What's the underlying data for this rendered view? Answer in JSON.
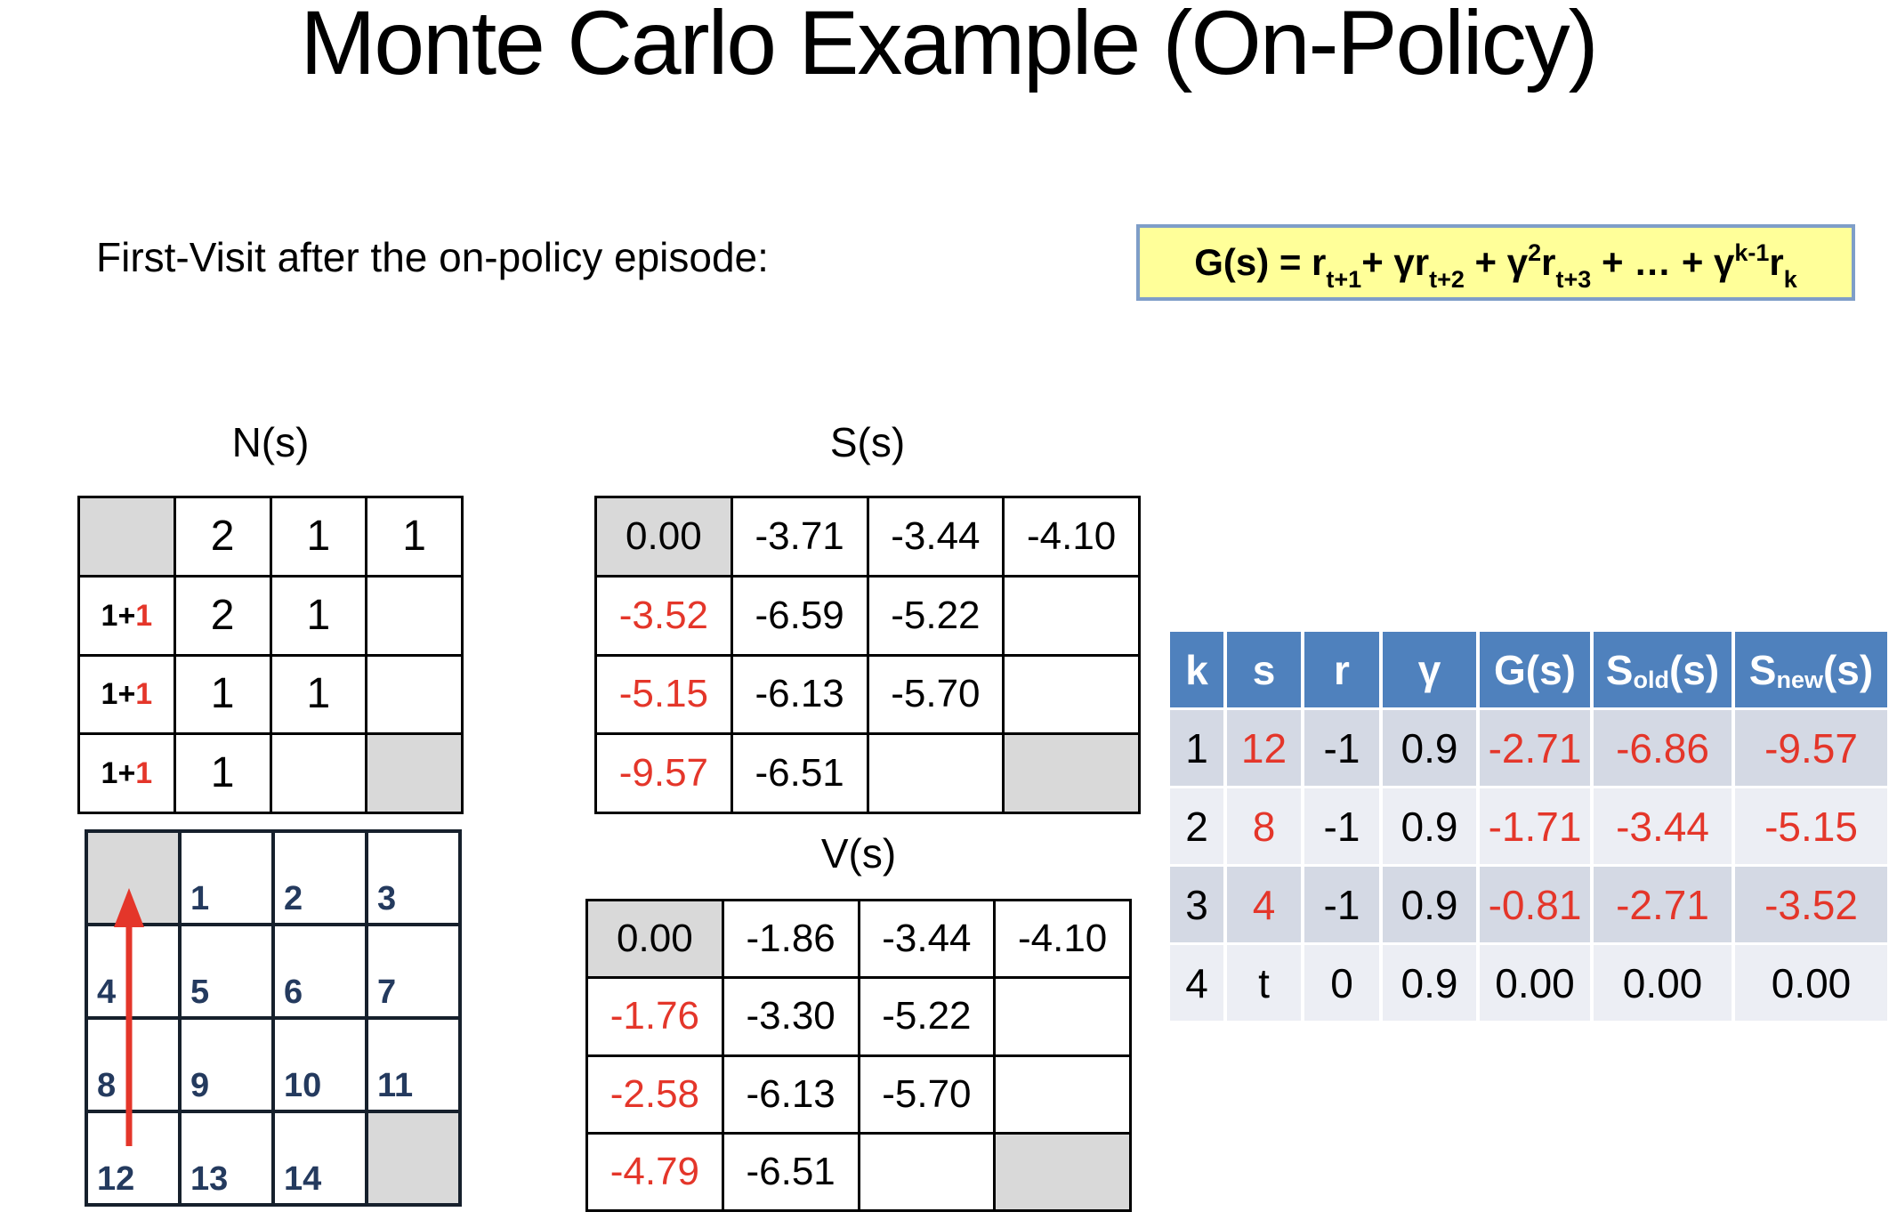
{
  "title": "Monte Carlo Example (On-Policy)",
  "subtitle": "First-Visit after the on-policy episode:",
  "formula": {
    "text_flat": "G(s) = r_{t+1}+ γr_{t+2} + γ^2 r_{t+3} + … + γ^{k-1} r_k",
    "parts": [
      [
        "G(s) = r",
        "t"
      ],
      [
        "t+1",
        "sub"
      ],
      [
        "+ γr",
        "t"
      ],
      [
        "t+2",
        "sub"
      ],
      [
        " + γ",
        "t"
      ],
      [
        "2",
        "sup"
      ],
      [
        "r",
        "t"
      ],
      [
        "t+3",
        "sub"
      ],
      [
        " + … + γ",
        "t"
      ],
      [
        "k-1",
        "sup"
      ],
      [
        "r",
        "t"
      ],
      [
        "k",
        "sub"
      ]
    ]
  },
  "labels": {
    "n": "N(s)",
    "s": "S(s)",
    "v": "V(s)"
  },
  "n_table": {
    "rows": [
      [
        {
          "bg": "g"
        },
        {
          "p": [
            [
              "2",
              "k"
            ]
          ]
        },
        {
          "p": [
            [
              "1",
              "k"
            ]
          ]
        },
        {
          "p": [
            [
              "1",
              "k"
            ]
          ]
        }
      ],
      [
        {
          "p": [
            [
              "1+",
              "k"
            ],
            [
              "1",
              "r"
            ]
          ],
          "small": true
        },
        {
          "p": [
            [
              "2",
              "k"
            ]
          ]
        },
        {
          "p": [
            [
              "1",
              "k"
            ]
          ]
        },
        {}
      ],
      [
        {
          "p": [
            [
              "1+",
              "k"
            ],
            [
              "1",
              "r"
            ]
          ],
          "small": true
        },
        {
          "p": [
            [
              "1",
              "k"
            ]
          ]
        },
        {
          "p": [
            [
              "1",
              "k"
            ]
          ]
        },
        {}
      ],
      [
        {
          "p": [
            [
              "1+",
              "k"
            ],
            [
              "1",
              "r"
            ]
          ],
          "small": true
        },
        {
          "p": [
            [
              "1",
              "k"
            ]
          ]
        },
        {},
        {
          "bg": "g"
        }
      ]
    ]
  },
  "s_table": {
    "rows": [
      [
        {
          "p": [
            [
              "0.00",
              "k"
            ]
          ],
          "bg": "g"
        },
        {
          "p": [
            [
              "-3.71",
              "k"
            ]
          ]
        },
        {
          "p": [
            [
              "-3.44",
              "k"
            ]
          ]
        },
        {
          "p": [
            [
              "-4.10",
              "k"
            ]
          ]
        }
      ],
      [
        {
          "p": [
            [
              "-3.52",
              "r"
            ]
          ]
        },
        {
          "p": [
            [
              "-6.59",
              "k"
            ]
          ]
        },
        {
          "p": [
            [
              "-5.22",
              "k"
            ]
          ]
        },
        {}
      ],
      [
        {
          "p": [
            [
              "-5.15",
              "r"
            ]
          ]
        },
        {
          "p": [
            [
              "-6.13",
              "k"
            ]
          ]
        },
        {
          "p": [
            [
              "-5.70",
              "k"
            ]
          ]
        },
        {}
      ],
      [
        {
          "p": [
            [
              "-9.57",
              "r"
            ]
          ]
        },
        {
          "p": [
            [
              "-6.51",
              "k"
            ]
          ]
        },
        {},
        {
          "bg": "g"
        }
      ]
    ]
  },
  "v_table": {
    "rows": [
      [
        {
          "p": [
            [
              "0.00",
              "k"
            ]
          ],
          "bg": "g"
        },
        {
          "p": [
            [
              "-1.86",
              "k"
            ]
          ]
        },
        {
          "p": [
            [
              "-3.44",
              "k"
            ]
          ]
        },
        {
          "p": [
            [
              "-4.10",
              "k"
            ]
          ]
        }
      ],
      [
        {
          "p": [
            [
              "-1.76",
              "r"
            ]
          ]
        },
        {
          "p": [
            [
              "-3.30",
              "k"
            ]
          ]
        },
        {
          "p": [
            [
              "-5.22",
              "k"
            ]
          ]
        },
        {}
      ],
      [
        {
          "p": [
            [
              "-2.58",
              "r"
            ]
          ]
        },
        {
          "p": [
            [
              "-6.13",
              "k"
            ]
          ]
        },
        {
          "p": [
            [
              "-5.70",
              "k"
            ]
          ]
        },
        {}
      ],
      [
        {
          "p": [
            [
              "-4.79",
              "r"
            ]
          ]
        },
        {
          "p": [
            [
              "-6.51",
              "k"
            ]
          ]
        },
        {},
        {
          "bg": "g"
        }
      ]
    ]
  },
  "grid_world": {
    "rows": [
      [
        {
          "bg": "g"
        },
        {
          "n": "1"
        },
        {
          "n": "2"
        },
        {
          "n": "3"
        }
      ],
      [
        {
          "n": "4"
        },
        {
          "n": "5"
        },
        {
          "n": "6"
        },
        {
          "n": "7"
        }
      ],
      [
        {
          "n": "8"
        },
        {
          "n": "9"
        },
        {
          "n": "10"
        },
        {
          "n": "11"
        }
      ],
      [
        {
          "n": "12"
        },
        {
          "n": "13"
        },
        {
          "n": "14"
        },
        {
          "bg": "g"
        }
      ]
    ],
    "arrow": "upward red arrow from state 12 through 8 and 4 into terminal corner"
  },
  "k_table": {
    "headers": [
      [
        [
          "k",
          ""
        ]
      ],
      [
        [
          "s",
          ""
        ]
      ],
      [
        [
          "r",
          ""
        ]
      ],
      [
        [
          "γ",
          ""
        ]
      ],
      [
        [
          "G(s)",
          ""
        ]
      ],
      [
        [
          "S",
          ""
        ],
        [
          "old",
          "sub"
        ],
        [
          "(s)",
          ""
        ]
      ],
      [
        [
          "S",
          ""
        ],
        [
          "new",
          "sub"
        ],
        [
          "(s)",
          ""
        ]
      ]
    ],
    "rows": [
      [
        [
          "1",
          "k"
        ],
        [
          "12",
          "r"
        ],
        [
          "-1",
          "k"
        ],
        [
          "0.9",
          "k"
        ],
        [
          "-2.71",
          "r"
        ],
        [
          "-6.86",
          "r"
        ],
        [
          "-9.57",
          "r"
        ]
      ],
      [
        [
          "2",
          "k"
        ],
        [
          "8",
          "r"
        ],
        [
          "-1",
          "k"
        ],
        [
          "0.9",
          "k"
        ],
        [
          "-1.71",
          "r"
        ],
        [
          "-3.44",
          "r"
        ],
        [
          "-5.15",
          "r"
        ]
      ],
      [
        [
          "3",
          "k"
        ],
        [
          "4",
          "r"
        ],
        [
          "-1",
          "k"
        ],
        [
          "0.9",
          "k"
        ],
        [
          "-0.81",
          "r"
        ],
        [
          "-2.71",
          "r"
        ],
        [
          "-3.52",
          "r"
        ]
      ],
      [
        [
          "4",
          "k"
        ],
        [
          "t",
          "k"
        ],
        [
          "0",
          "k"
        ],
        [
          "0.9",
          "k"
        ],
        [
          "0.00",
          "k"
        ],
        [
          "0.00",
          "k"
        ],
        [
          "0.00",
          "k"
        ]
      ]
    ]
  },
  "colors": {
    "accent_red": "#e4362a",
    "terminal_gray": "#d9d9d9",
    "header_blue": "#4f81bd",
    "row_odd": "#d4d9e4",
    "row_even": "#eceef4",
    "formula_bg": "#ffff99",
    "formula_border": "#7f9ec8",
    "grid_line": "#16202c",
    "grid_number": "#243a5e"
  }
}
